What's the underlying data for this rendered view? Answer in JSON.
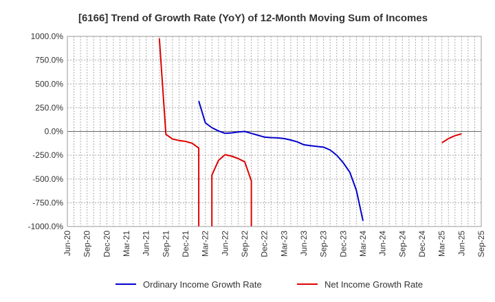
{
  "chart_data": {
    "type": "line",
    "title": "[6166]  Trend of Growth Rate (YoY) of 12-Month Moving Sum of Incomes",
    "xlabel": "",
    "ylabel": "",
    "ylim": [
      -1000,
      1000
    ],
    "y_ticks": [
      {
        "value": 1000,
        "label": "1000.0%"
      },
      {
        "value": 750,
        "label": "750.0%"
      },
      {
        "value": 500,
        "label": "500.0%"
      },
      {
        "value": 250,
        "label": "250.0%"
      },
      {
        "value": 0,
        "label": "0.0%"
      },
      {
        "value": -250,
        "label": "-250.0%"
      },
      {
        "value": -500,
        "label": "-500.0%"
      },
      {
        "value": -750,
        "label": "-750.0%"
      },
      {
        "value": -1000,
        "label": "-1000.0%"
      }
    ],
    "x_ticks": [
      "Jun-20",
      "Sep-20",
      "Dec-20",
      "Mar-21",
      "Jun-21",
      "Sep-21",
      "Dec-21",
      "Mar-22",
      "Jun-22",
      "Sep-22",
      "Dec-22",
      "Mar-23",
      "Jun-23",
      "Sep-23",
      "Dec-23",
      "Mar-24",
      "Jun-24",
      "Sep-24",
      "Dec-24",
      "Mar-25",
      "Jun-25",
      "Sep-25"
    ],
    "grid": true,
    "legend_position": "bottom",
    "series": [
      {
        "name": "Ordinary Income Growth Rate",
        "color": "#0000cc",
        "points": [
          [
            "Feb-22",
            320
          ],
          [
            "Mar-22",
            90
          ],
          [
            "Apr-22",
            40
          ],
          [
            "May-22",
            5
          ],
          [
            "Jun-22",
            -20
          ],
          [
            "Jul-22",
            -15
          ],
          [
            "Aug-22",
            -5
          ],
          [
            "Sep-22",
            0
          ],
          [
            "Oct-22",
            -20
          ],
          [
            "Nov-22",
            -40
          ],
          [
            "Dec-22",
            -60
          ],
          [
            "Jan-23",
            -65
          ],
          [
            "Feb-23",
            -68
          ],
          [
            "Mar-23",
            -75
          ],
          [
            "Apr-23",
            -90
          ],
          [
            "May-23",
            -110
          ],
          [
            "Jun-23",
            -140
          ],
          [
            "Jul-23",
            -150
          ],
          [
            "Aug-23",
            -158
          ],
          [
            "Sep-23",
            -165
          ],
          [
            "Oct-23",
            -195
          ],
          [
            "Nov-23",
            -250
          ],
          [
            "Dec-23",
            -330
          ],
          [
            "Jan-24",
            -430
          ],
          [
            "Feb-24",
            -620
          ],
          [
            "Mar-24",
            -940
          ]
        ]
      },
      {
        "name": "Net Income Growth Rate",
        "color": "#dd0000",
        "segments": [
          [
            [
              "Aug-21",
              980
            ],
            [
              "Sep-21",
              -30
            ],
            [
              "Oct-21",
              -80
            ],
            [
              "Nov-21",
              -95
            ],
            [
              "Dec-21",
              -105
            ],
            [
              "Jan-22",
              -125
            ],
            [
              "Feb-22",
              -175
            ],
            [
              "Feb-22",
              -1000
            ]
          ],
          [
            [
              "Apr-22",
              -1000
            ],
            [
              "Apr-22",
              -460
            ],
            [
              "May-22",
              -305
            ],
            [
              "Jun-22",
              -245
            ],
            [
              "Jul-22",
              -260
            ],
            [
              "Aug-22",
              -285
            ],
            [
              "Sep-22",
              -320
            ],
            [
              "Oct-22",
              -520
            ],
            [
              "Oct-22",
              -1000
            ]
          ],
          [
            [
              "Mar-25",
              -120
            ],
            [
              "Apr-25",
              -75
            ],
            [
              "May-25",
              -45
            ],
            [
              "Jun-25",
              -25
            ]
          ]
        ]
      }
    ]
  }
}
